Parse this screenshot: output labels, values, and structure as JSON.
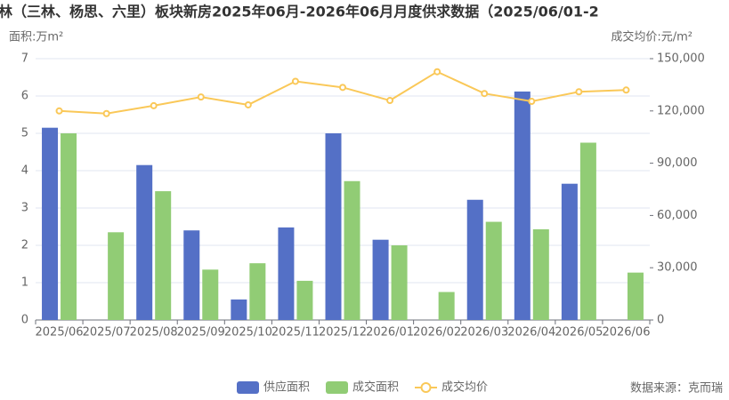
{
  "chart_data": {
    "type": "bar-line",
    "title": "林（三林、杨思、六里）板块新房2025年06月-2026年06月月度供求数据（2025/06/01-2",
    "y_axis_label": "面积:万m²",
    "y2_axis_label": "成交均价:元/m²",
    "source": "数据来源：克而瑞",
    "categories": [
      "2025/06",
      "2025/07",
      "2025/08",
      "2025/09",
      "2025/10",
      "2025/11",
      "2025/12",
      "2026/01",
      "2026/02",
      "2026/03",
      "2026/04",
      "2026/05",
      "2026/06"
    ],
    "series": [
      {
        "name": "供应面积",
        "type": "bar",
        "color": "#5470c6",
        "values": [
          5.15,
          null,
          4.15,
          2.4,
          0.55,
          2.48,
          5.0,
          2.15,
          null,
          3.22,
          6.12,
          3.65,
          null
        ]
      },
      {
        "name": "成交面积",
        "type": "bar",
        "color": "#91cc75",
        "values": [
          5.0,
          2.35,
          3.45,
          1.35,
          1.52,
          1.05,
          3.72,
          2.0,
          0.75,
          2.63,
          2.43,
          4.75,
          1.27
        ]
      },
      {
        "name": "成交均价",
        "type": "line",
        "axis": "y2",
        "color": "#fac858",
        "values": [
          120000,
          118500,
          123000,
          128000,
          123500,
          137000,
          133500,
          126000,
          142500,
          130000,
          125500,
          131000,
          132000
        ]
      }
    ],
    "ylim": [
      0,
      7
    ],
    "yticks": [
      0,
      1,
      2,
      3,
      4,
      5,
      6,
      7
    ],
    "y2lim": [
      0,
      150000
    ],
    "y2ticks": [
      0,
      {
        "value": 30000,
        "label": "30,000"
      },
      {
        "value": 60000,
        "label": "60,000"
      },
      {
        "value": 90000,
        "label": "90,000"
      },
      {
        "value": 120000,
        "label": "120,000"
      },
      {
        "value": 150000,
        "label": "150,000"
      }
    ],
    "grid": true
  }
}
